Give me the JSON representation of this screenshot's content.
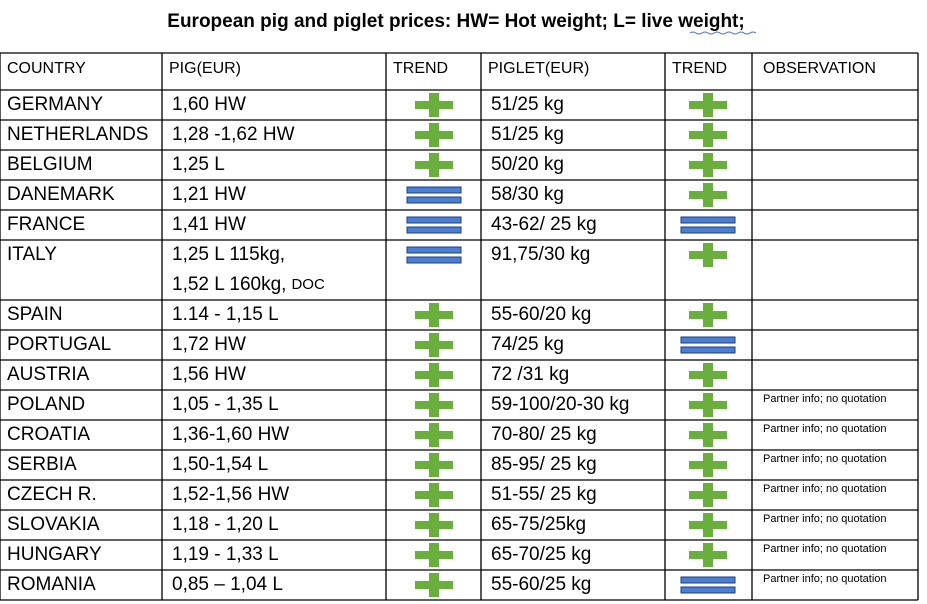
{
  "title": "European pig and piglet prices: HW= Hot weight; L= live weight;",
  "table": {
    "header": [
      "COUNTRY",
      "PIG(EUR)",
      "TREND",
      "PIGLET(EUR)",
      "TREND",
      "OBSERVATION"
    ],
    "rows": [
      [
        "GERMANY",
        "1,60 HW",
        "51/25 kg"
      ],
      [
        "NETHERLANDS",
        "1,28 -1,62 HW",
        "51/25 kg"
      ],
      [
        "BELGIUM",
        "1,25 L",
        "50/20 kg"
      ],
      [
        "DANEMARK",
        "1,21 HW",
        "58/30 kg"
      ],
      [
        "FRANCE",
        "1,41 HW",
        "43-62/ 25 kg"
      ],
      [
        "ITALY",
        [
          "1,25 L 115kg,",
          "1,52 L 160kg,",
          "DOC"
        ],
        "91,75/30 kg"
      ],
      [
        "SPAIN",
        "1.14 - 1,15 L",
        "55-60/20 kg"
      ],
      [
        "PORTUGAL",
        "1,72 HW",
        "74/25 kg"
      ],
      [
        "AUSTRIA",
        "1,56 HW",
        "72 /31 kg"
      ],
      [
        "POLAND",
        "1,05 - 1,35 L",
        "59-100/20-30 kg",
        "Partner info; no quotation"
      ],
      [
        "CROATIA",
        "1,36-1,60 HW",
        "70-80/ 25 kg",
        "Partner info; no quotation"
      ],
      [
        "SERBIA",
        "1,50-1,54 L",
        "85-95/ 25 kg",
        "Partner info; no quotation"
      ],
      [
        "CZECH R.",
        "1,52-1,56 HW",
        "51-55/ 25 kg",
        "Partner info; no quotation"
      ],
      [
        "SLOVAKIA",
        "1,18 - 1,20 L",
        "65-75/25kg",
        "Partner info; no quotation"
      ],
      [
        "HUNGARY",
        "1,19 - 1,33 L",
        "65-70/25 kg",
        "Partner info; no quotation"
      ],
      [
        "ROMANIA",
        "0,85 – 1,04 L",
        "55-60/25 kg",
        "Partner info; no quotation"
      ]
    ]
  }
}
